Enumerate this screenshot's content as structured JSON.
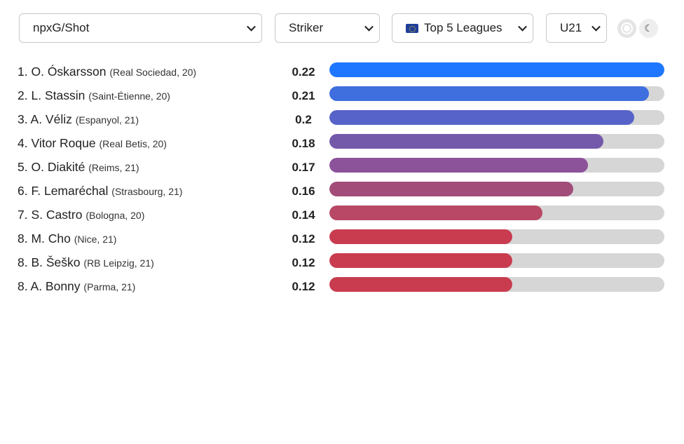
{
  "filters": {
    "metric": "npxG/Shot",
    "position": "Striker",
    "league_flag_icon": "eu-flag-icon",
    "league": "Top 5 Leagues",
    "age": "U21"
  },
  "theme_toggle": {
    "light_icon": "circle-icon",
    "dark_icon": "moon-icon",
    "dark_glyph": "☾"
  },
  "chart_data": {
    "type": "bar",
    "orientation": "horizontal",
    "xlim": [
      0,
      0.22
    ],
    "series": [
      {
        "values": [
          0.22,
          0.21,
          0.2,
          0.18,
          0.17,
          0.16,
          0.14,
          0.12,
          0.12,
          0.12
        ],
        "colors": [
          "#1f77ff",
          "#3f6ede",
          "#5763c8",
          "#7459ab",
          "#8c529a",
          "#a24c7a",
          "#b84865",
          "#c93c50",
          "#c93c50",
          "#c93c50"
        ]
      }
    ],
    "rows": [
      {
        "rank": "1.",
        "name": "O. Óskarsson",
        "meta": "(Real Sociedad, 20)",
        "value_label": "0.22"
      },
      {
        "rank": "2.",
        "name": "L. Stassin",
        "meta": "(Saint-Étienne, 20)",
        "value_label": "0.21"
      },
      {
        "rank": "3.",
        "name": "A. Véliz",
        "meta": "(Espanyol, 21)",
        "value_label": "0.2"
      },
      {
        "rank": "4.",
        "name": "Vitor Roque",
        "meta": "(Real Betis, 20)",
        "value_label": "0.18"
      },
      {
        "rank": "5.",
        "name": "O. Diakité",
        "meta": "(Reims, 21)",
        "value_label": "0.17"
      },
      {
        "rank": "6.",
        "name": "F. Lemaréchal",
        "meta": "(Strasbourg, 21)",
        "value_label": "0.16"
      },
      {
        "rank": "7.",
        "name": "S. Castro",
        "meta": "(Bologna, 20)",
        "value_label": "0.14"
      },
      {
        "rank": "8.",
        "name": "M. Cho",
        "meta": "(Nice, 21)",
        "value_label": "0.12"
      },
      {
        "rank": "8.",
        "name": "B. Šeško",
        "meta": "(RB Leipzig, 21)",
        "value_label": "0.12"
      },
      {
        "rank": "8.",
        "name": "A. Bonny",
        "meta": "(Parma, 21)",
        "value_label": "0.12"
      }
    ]
  }
}
